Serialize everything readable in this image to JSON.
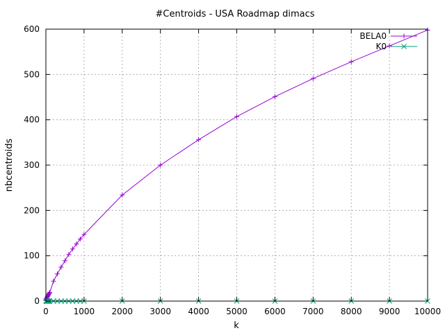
{
  "chart_data": {
    "type": "line",
    "title": "#Centroids - USA Roadmap dimacs",
    "xlabel": "k",
    "ylabel": "nbcentroids",
    "xlim": [
      0,
      10000
    ],
    "ylim": [
      0,
      600
    ],
    "xticks": [
      0,
      1000,
      2000,
      3000,
      4000,
      5000,
      6000,
      7000,
      8000,
      9000,
      10000
    ],
    "yticks": [
      0,
      100,
      200,
      300,
      400,
      500,
      600
    ],
    "grid": true,
    "legend_position": "top-right",
    "series": [
      {
        "name": "BELA0",
        "color": "#9400d3",
        "marker": "plus",
        "x": [
          2,
          5,
          10,
          20,
          30,
          40,
          50,
          60,
          70,
          80,
          90,
          100,
          200,
          300,
          400,
          500,
          600,
          700,
          800,
          900,
          1000,
          2000,
          3000,
          4000,
          5000,
          6000,
          7000,
          8000,
          9000,
          10000
        ],
        "y": [
          1,
          2,
          4,
          6,
          8,
          10,
          11,
          13,
          14,
          16,
          17,
          19,
          44,
          60,
          75,
          89,
          103,
          115,
          126,
          137,
          147,
          234,
          300,
          356,
          407,
          451,
          491,
          528,
          563,
          598
        ]
      },
      {
        "name": "K0",
        "color": "#009e73",
        "marker": "x",
        "x": [
          2,
          5,
          10,
          20,
          30,
          40,
          50,
          60,
          70,
          80,
          90,
          100,
          200,
          300,
          400,
          500,
          600,
          700,
          800,
          900,
          1000,
          2000,
          3000,
          4000,
          5000,
          6000,
          7000,
          8000,
          9000,
          10000
        ],
        "y": [
          0,
          0,
          0,
          0,
          0,
          0,
          0,
          0,
          0,
          0,
          0,
          0,
          0,
          0,
          0,
          0,
          0,
          0,
          0,
          0,
          0,
          0,
          0,
          0,
          0,
          0,
          0,
          0,
          0,
          0
        ]
      }
    ]
  }
}
